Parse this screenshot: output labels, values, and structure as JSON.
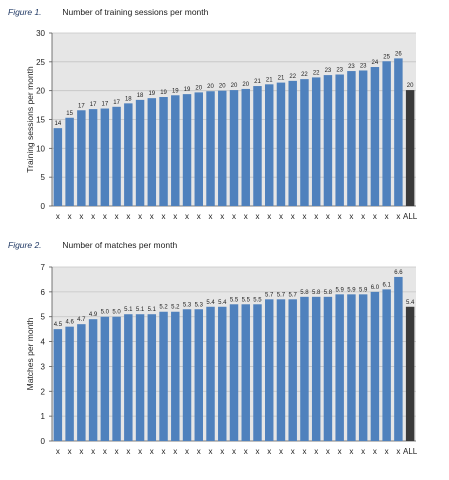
{
  "chart_data": [
    {
      "type": "bar",
      "figure_label": "Figure 1.",
      "title": "Number of training sessions per month",
      "ylabel": "Training sessions per month",
      "xlabel": "",
      "ylim": [
        0,
        30
      ],
      "yticks": [
        0,
        5,
        10,
        15,
        20,
        25,
        30
      ],
      "grid": true,
      "categories": [
        "x",
        "x",
        "x",
        "x",
        "x",
        "x",
        "x",
        "x",
        "x",
        "x",
        "x",
        "x",
        "x",
        "x",
        "x",
        "x",
        "x",
        "x",
        "x",
        "x",
        "x",
        "x",
        "x",
        "x",
        "x",
        "x",
        "x",
        "x",
        "x",
        "x",
        "ALL"
      ],
      "values": [
        13.5,
        15.3,
        16.6,
        16.8,
        16.9,
        17.2,
        17.8,
        18.4,
        18.7,
        18.9,
        19.2,
        19.4,
        19.7,
        19.9,
        20.0,
        20.1,
        20.3,
        20.8,
        21.1,
        21.4,
        21.7,
        22.0,
        22.3,
        22.7,
        22.8,
        23.4,
        23.5,
        24.1,
        25.1,
        25.6,
        20.1
      ],
      "data_labels": [
        "14",
        "15",
        "17",
        "17",
        "17",
        "17",
        "18",
        "18",
        "19",
        "19",
        "19",
        "19",
        "20",
        "20",
        "20",
        "20",
        "20",
        "21",
        "21",
        "21",
        "22",
        "22",
        "22",
        "23",
        "23",
        "23",
        "23",
        "24",
        "25",
        "26",
        "20"
      ],
      "bar_color": "#4f81bd",
      "highlight_color": "#3a3a3a",
      "plot_background": "#e6e6e6"
    },
    {
      "type": "bar",
      "figure_label": "Figure 2.",
      "title": "Number of matches per month",
      "ylabel": "Matches per month",
      "xlabel": "",
      "ylim": [
        0,
        7
      ],
      "yticks": [
        0,
        1,
        2,
        3,
        4,
        5,
        6,
        7
      ],
      "grid": true,
      "categories": [
        "x",
        "x",
        "x",
        "x",
        "x",
        "x",
        "x",
        "x",
        "x",
        "x",
        "x",
        "x",
        "x",
        "x",
        "x",
        "x",
        "x",
        "x",
        "x",
        "x",
        "x",
        "x",
        "x",
        "x",
        "x",
        "x",
        "x",
        "x",
        "x",
        "x",
        "ALL"
      ],
      "values": [
        4.5,
        4.6,
        4.7,
        4.9,
        5.0,
        5.0,
        5.1,
        5.1,
        5.1,
        5.2,
        5.2,
        5.3,
        5.3,
        5.4,
        5.4,
        5.5,
        5.5,
        5.5,
        5.7,
        5.7,
        5.7,
        5.8,
        5.8,
        5.8,
        5.9,
        5.9,
        5.9,
        6.0,
        6.1,
        6.6,
        5.4
      ],
      "data_labels": [
        "4.5",
        "4.6",
        "4.7",
        "4.9",
        "5.0",
        "5.0",
        "5.1",
        "5.1",
        "5.1",
        "5.2",
        "5.2",
        "5.3",
        "5.3",
        "5.4",
        "5.4",
        "5.5",
        "5.5",
        "5.5",
        "5.7",
        "5.7",
        "5.7",
        "5.8",
        "5.8",
        "5.8",
        "5.9",
        "5.9",
        "5.9",
        "6.0",
        "6.1",
        "6.6",
        "5.4"
      ],
      "bar_color": "#4f81bd",
      "highlight_color": "#3a3a3a",
      "plot_background": "#e6e6e6"
    }
  ]
}
